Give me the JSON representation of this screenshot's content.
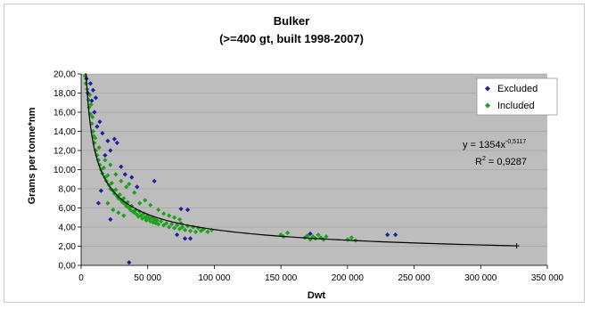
{
  "chart_data": {
    "type": "scatter",
    "title": "Bulker",
    "subtitle": "(>=400 gt, built 1998-2007)",
    "xlabel": "Dwt",
    "ylabel": "Grams per tonne*nm",
    "xlim": [
      0,
      350000
    ],
    "ylim": [
      0,
      20
    ],
    "x_ticks": [
      0,
      50000,
      100000,
      150000,
      200000,
      250000,
      300000,
      350000
    ],
    "x_tick_labels": [
      "0",
      "50 000",
      "100 000",
      "150 000",
      "200 000",
      "250 000",
      "300 000",
      "350 000"
    ],
    "y_ticks": [
      0,
      2,
      4,
      6,
      8,
      10,
      12,
      14,
      16,
      18,
      20
    ],
    "y_tick_labels": [
      "0,00",
      "2,00",
      "4,00",
      "6,00",
      "8,00",
      "10,00",
      "12,00",
      "14,00",
      "16,00",
      "18,00",
      "20,00"
    ],
    "grid": "horizontal",
    "legend_position": "top-right",
    "series": [
      {
        "name": "Excluded",
        "color": "#1f1f9e",
        "marker": "diamond",
        "points": [
          [
            4000,
            19.5
          ],
          [
            5000,
            18.0
          ],
          [
            7000,
            19.0
          ],
          [
            8000,
            17.2
          ],
          [
            9000,
            18.3
          ],
          [
            10000,
            16.0
          ],
          [
            11000,
            17.5
          ],
          [
            12000,
            14.5
          ],
          [
            14000,
            15.0
          ],
          [
            16000,
            13.8
          ],
          [
            18000,
            11.5
          ],
          [
            20000,
            13.0
          ],
          [
            22000,
            12.0
          ],
          [
            25000,
            13.2
          ],
          [
            27000,
            12.8
          ],
          [
            30000,
            10.3
          ],
          [
            33000,
            9.5
          ],
          [
            38000,
            9.2
          ],
          [
            42000,
            8.2
          ],
          [
            55000,
            8.8
          ],
          [
            15000,
            7.8
          ],
          [
            13000,
            6.5
          ],
          [
            22000,
            4.8
          ],
          [
            36000,
            0.3
          ],
          [
            75000,
            5.9
          ],
          [
            80000,
            5.8
          ],
          [
            72000,
            3.2
          ],
          [
            78000,
            2.8
          ],
          [
            82000,
            2.8
          ],
          [
            230000,
            3.2
          ],
          [
            236000,
            3.2
          ],
          [
            172000,
            3.3
          ]
        ]
      },
      {
        "name": "Included",
        "color": "#1fa01f",
        "marker": "diamond",
        "points": [
          [
            3000,
            19.8
          ],
          [
            3500,
            19.0
          ],
          [
            4500,
            18.4
          ],
          [
            5500,
            17.3
          ],
          [
            6000,
            16.5
          ],
          [
            6500,
            17.8
          ],
          [
            7000,
            15.8
          ],
          [
            7500,
            16.8
          ],
          [
            8000,
            14.8
          ],
          [
            8500,
            15.5
          ],
          [
            9000,
            14.0
          ],
          [
            9500,
            13.5
          ],
          [
            10000,
            12.8
          ],
          [
            10500,
            13.3
          ],
          [
            11000,
            12.0
          ],
          [
            12000,
            11.5
          ],
          [
            13000,
            11.0
          ],
          [
            13500,
            12.3
          ],
          [
            14000,
            10.5
          ],
          [
            15000,
            10.0
          ],
          [
            16000,
            9.6
          ],
          [
            17000,
            10.2
          ],
          [
            18000,
            9.2
          ],
          [
            19000,
            8.8
          ],
          [
            20000,
            9.4
          ],
          [
            21000,
            8.4
          ],
          [
            22000,
            8.0
          ],
          [
            23000,
            8.6
          ],
          [
            24000,
            7.8
          ],
          [
            25000,
            7.5
          ],
          [
            26000,
            7.9
          ],
          [
            27000,
            7.2
          ],
          [
            28000,
            7.0
          ],
          [
            29000,
            7.4
          ],
          [
            30000,
            6.8
          ],
          [
            31000,
            6.6
          ],
          [
            32000,
            7.0
          ],
          [
            33000,
            6.4
          ],
          [
            34000,
            6.2
          ],
          [
            35000,
            6.6
          ],
          [
            36000,
            6.0
          ],
          [
            37000,
            5.8
          ],
          [
            38000,
            6.2
          ],
          [
            39000,
            5.6
          ],
          [
            40000,
            5.5
          ],
          [
            41000,
            5.8
          ],
          [
            42000,
            5.3
          ],
          [
            43000,
            5.1
          ],
          [
            44000,
            5.6
          ],
          [
            45000,
            5.2
          ],
          [
            46000,
            4.9
          ],
          [
            47000,
            5.4
          ],
          [
            48000,
            5.0
          ],
          [
            49000,
            4.7
          ],
          [
            50000,
            5.2
          ],
          [
            51000,
            4.9
          ],
          [
            52000,
            4.6
          ],
          [
            53000,
            5.0
          ],
          [
            54000,
            4.5
          ],
          [
            55000,
            4.8
          ],
          [
            56000,
            4.4
          ],
          [
            57000,
            4.7
          ],
          [
            58000,
            4.3
          ],
          [
            60000,
            4.6
          ],
          [
            62000,
            4.2
          ],
          [
            64000,
            4.4
          ],
          [
            66000,
            4.0
          ],
          [
            68000,
            4.3
          ],
          [
            70000,
            3.9
          ],
          [
            72000,
            4.2
          ],
          [
            74000,
            3.8
          ],
          [
            75000,
            4.4
          ],
          [
            76000,
            4.0
          ],
          [
            78000,
            3.7
          ],
          [
            80000,
            4.1
          ],
          [
            82000,
            3.6
          ],
          [
            84000,
            4.0
          ],
          [
            86000,
            3.5
          ],
          [
            88000,
            3.9
          ],
          [
            90000,
            3.6
          ],
          [
            92000,
            3.8
          ],
          [
            95000,
            3.5
          ],
          [
            98000,
            3.7
          ],
          [
            20000,
            6.5
          ],
          [
            24000,
            5.8
          ],
          [
            28000,
            5.5
          ],
          [
            32000,
            5.2
          ],
          [
            36000,
            8.5
          ],
          [
            40000,
            7.6
          ],
          [
            18000,
            11.0
          ],
          [
            22000,
            10.5
          ],
          [
            26000,
            9.5
          ],
          [
            30000,
            8.8
          ],
          [
            34000,
            8.2
          ],
          [
            44000,
            6.5
          ],
          [
            48000,
            6.8
          ],
          [
            52000,
            6.3
          ],
          [
            58000,
            5.8
          ],
          [
            62000,
            5.4
          ],
          [
            66000,
            5.2
          ],
          [
            70000,
            5.0
          ],
          [
            74000,
            4.8
          ],
          [
            150000,
            3.2
          ],
          [
            152000,
            3.0
          ],
          [
            155000,
            3.4
          ],
          [
            168000,
            2.9
          ],
          [
            170000,
            3.1
          ],
          [
            172000,
            2.7
          ],
          [
            174000,
            3.0
          ],
          [
            176000,
            2.8
          ],
          [
            178000,
            3.2
          ],
          [
            180000,
            2.9
          ],
          [
            182000,
            2.7
          ],
          [
            184000,
            3.0
          ],
          [
            200000,
            2.7
          ],
          [
            203000,
            2.9
          ],
          [
            206000,
            2.6
          ]
        ]
      }
    ],
    "trendline": {
      "type": "power",
      "a": 1354,
      "b": -0.5117,
      "x_range": [
        3000,
        327000
      ],
      "equation_base": "y = 1354x",
      "equation_exponent": "-0,5117",
      "r2_prefix": "R",
      "r2_exponent": "2",
      "r2_suffix": " = 0,9287"
    }
  }
}
